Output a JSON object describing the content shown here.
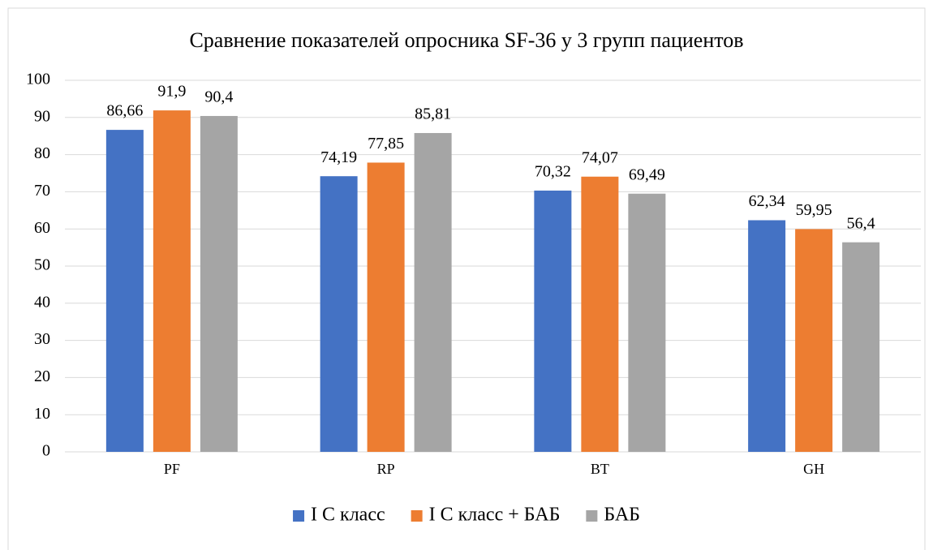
{
  "chart_data": {
    "type": "bar",
    "title": "Сравнение показателей опросника SF-36 у 3 групп пациентов",
    "categories": [
      "PF",
      "RP",
      "BT",
      "GH"
    ],
    "series": [
      {
        "name": "I С класс",
        "color": "#4472c4",
        "label_color": "#000000",
        "values": [
          86.66,
          74.19,
          70.32,
          62.34
        ],
        "value_labels": [
          "86,66",
          "74,19",
          "70,32",
          "62,34"
        ]
      },
      {
        "name": "I С класс + БАБ",
        "color": "#ed7d31",
        "label_color": "#000000",
        "values": [
          91.9,
          77.85,
          74.07,
          59.95
        ],
        "value_labels": [
          "91,9",
          "77,85",
          "74,07",
          "59,95"
        ]
      },
      {
        "name": "БАБ",
        "color": "#a5a5a5",
        "label_color": "#666666",
        "values": [
          90.4,
          85.81,
          69.49,
          56.4
        ],
        "value_labels": [
          "90,4",
          "85,81",
          "69,49",
          "56,4"
        ]
      }
    ],
    "ylim": [
      0,
      100
    ],
    "yticks": [
      0,
      10,
      20,
      30,
      40,
      50,
      60,
      70,
      80,
      90,
      100
    ],
    "grid": true,
    "legend": "bottom"
  }
}
